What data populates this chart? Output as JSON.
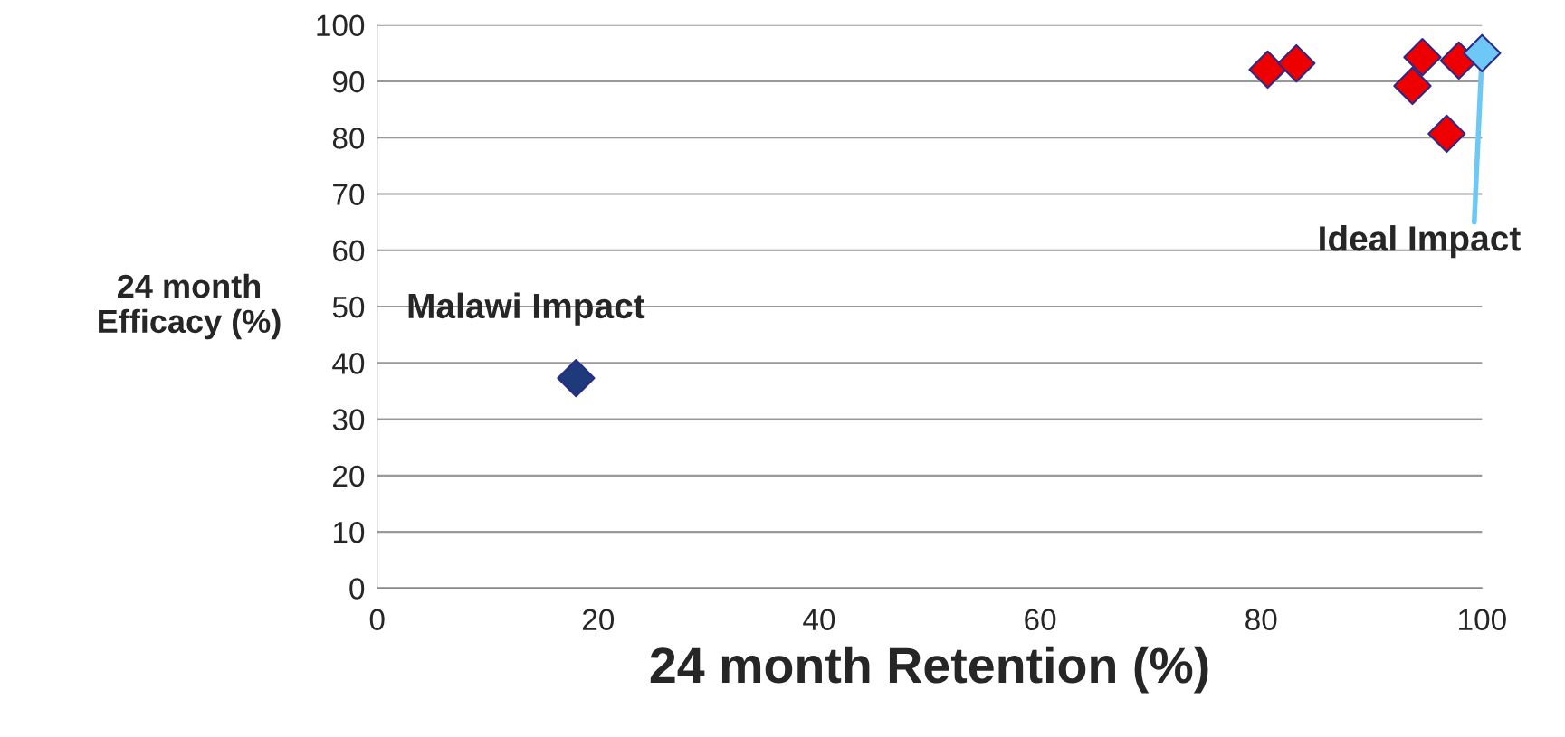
{
  "chart_data": {
    "type": "scatter",
    "xlabel": "24 month Retention (%)",
    "ylabel": "24 month\nEfficacy (%)",
    "series": [
      {
        "color": "#ee0000",
        "x": [
          80.6,
          83.2,
          94.6,
          93.7,
          97.9,
          96.8
        ],
        "values": [
          92.1,
          93.2,
          94.3,
          89.2,
          93.7,
          80.7
        ]
      },
      {
        "color": "#1f3a7a",
        "x": [
          18
        ],
        "values": [
          37.3
        ]
      },
      {
        "color": "#6ec8f5",
        "x": [
          100
        ],
        "values": [
          95
        ]
      }
    ],
    "annotations": [
      {
        "text": "Malawi Impact",
        "x": 18,
        "y": 37.3
      },
      {
        "text": "Ideal Impact",
        "x": 100,
        "y": 95
      }
    ],
    "xlim": [
      0,
      100
    ],
    "xticks": [
      0,
      20,
      40,
      60,
      80,
      100
    ],
    "ylim": [
      0,
      100
    ],
    "yticks": [
      0,
      10,
      20,
      30,
      40,
      50,
      60,
      70,
      80,
      90,
      100
    ],
    "grid": "y",
    "marker": "diamond"
  }
}
